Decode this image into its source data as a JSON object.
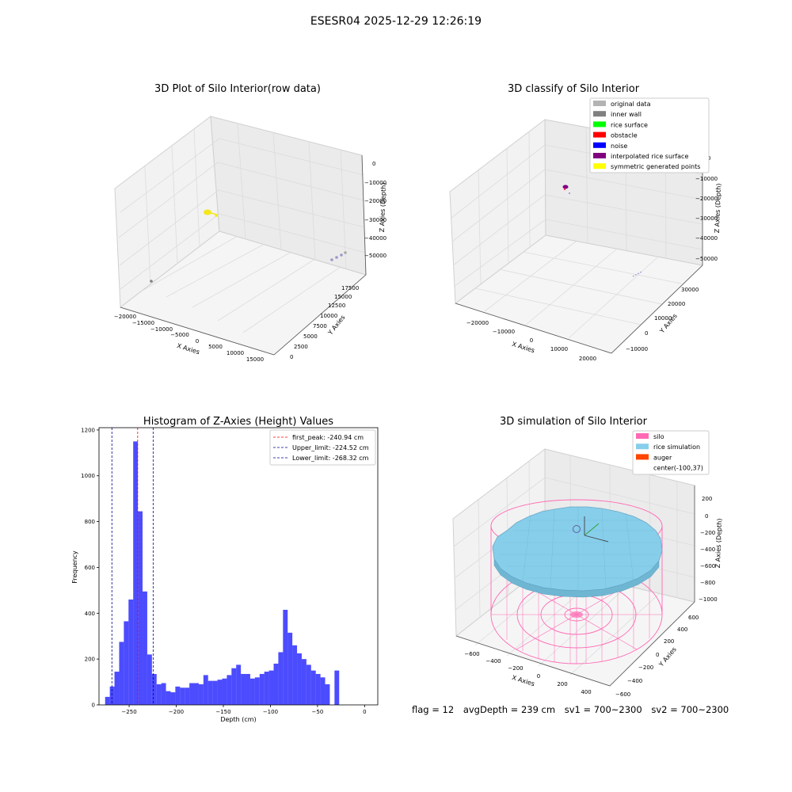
{
  "figure": {
    "suptitle": "ESESR04 2025-12-29 12:26:19",
    "footer": {
      "flag": "flag = 12",
      "avg_depth": "avgDepth = 239 cm",
      "sv1": "sv1 = 700~2300",
      "sv2": "sv2 = 700~2300"
    }
  },
  "colors": {
    "original_data": "#b3b3b3",
    "inner_wall": "#808080",
    "rice_surface": "#00ff00",
    "obstacle": "#ff0000",
    "noise": "#0000ff",
    "interpolated_rice_surface": "#800080",
    "symmetric_generated_points": "#ffff00",
    "silo": "#ff69b4",
    "rice_simulation": "#87ceeb",
    "auger": "#ff4500",
    "hist_bar": "#0000ff",
    "first_peak_line": "#ff0000",
    "limit_line": "#00008b"
  },
  "chart_data": [
    {
      "type": "scatter",
      "title": "3D Plot of Silo Interior(row data)",
      "xlabel": "X Axies",
      "ylabel": "Y Axies",
      "zlabel": "Z Axies (Depth)",
      "x_ticks": [
        "−20000",
        "−15000",
        "−10000",
        "−5000",
        "0",
        "5000",
        "10000",
        "15000"
      ],
      "y_ticks": [
        "0",
        "2500",
        "5000",
        "7500",
        "10000",
        "12500",
        "15000",
        "17500"
      ],
      "z_ticks": [
        "0",
        "−10000",
        "−20000",
        "−30000",
        "−40000",
        "−50000"
      ]
    },
    {
      "type": "scatter",
      "title": "3D classify of Silo Interior",
      "xlabel": "X Axies",
      "ylabel": "Y Axies",
      "zlabel": "Z Axies (Depth)",
      "x_ticks": [
        "−20000",
        "−10000",
        "0",
        "10000",
        "20000"
      ],
      "y_ticks": [
        "−10000",
        "0",
        "10000",
        "20000",
        "30000"
      ],
      "z_ticks": [
        "0",
        "−10000",
        "−20000",
        "−30000",
        "−40000",
        "−50000"
      ],
      "legend": [
        {
          "label": "original data",
          "color": "#b3b3b3"
        },
        {
          "label": "inner wall",
          "color": "#808080"
        },
        {
          "label": "rice surface",
          "color": "#00ff00"
        },
        {
          "label": "obstacle",
          "color": "#ff0000"
        },
        {
          "label": "noise",
          "color": "#0000ff"
        },
        {
          "label": "interpolated rice surface",
          "color": "#800080"
        },
        {
          "label": "symmetric generated points",
          "color": "#ffff00"
        }
      ],
      "legend_position": "top-right"
    },
    {
      "type": "bar",
      "title": "Histogram of Z-Axies (Height) Values",
      "xlabel": "Depth (cm)",
      "ylabel": "Frequency",
      "xlim": [
        -282,
        14
      ],
      "ylim": [
        0,
        1210
      ],
      "x_ticks": [
        -250,
        -200,
        -150,
        -100,
        -50,
        0
      ],
      "y_ticks": [
        0,
        200,
        400,
        600,
        800,
        1000,
        1200
      ],
      "tick_label_map": {
        "-250": "−250",
        "-200": "−200",
        "-150": "−150",
        "-100": "−100",
        "-50": "−50",
        "0": "0"
      },
      "bin_width": 4.97,
      "bin_start": -275.5,
      "values": [
        35,
        80,
        145,
        275,
        365,
        460,
        1150,
        845,
        495,
        220,
        135,
        90,
        95,
        60,
        55,
        80,
        75,
        75,
        95,
        95,
        90,
        130,
        105,
        105,
        110,
        115,
        130,
        160,
        175,
        135,
        135,
        115,
        120,
        135,
        145,
        150,
        180,
        230,
        415,
        315,
        260,
        225,
        200,
        175,
        150,
        135,
        120,
        90,
        0,
        150
      ],
      "lines": [
        {
          "label": "first_peak: -240.94 cm",
          "x": -240.94,
          "color": "#ff0000"
        },
        {
          "label": "Upper_limit: -224.52 cm",
          "x": -224.52,
          "color": "#00008b"
        },
        {
          "label": "Lower_limit: -268.32 cm",
          "x": -268.32,
          "color": "#00008b"
        }
      ],
      "legend_position": "top-right"
    },
    {
      "type": "surface",
      "title": "3D simulation of Silo Interior",
      "xlabel": "X Axies",
      "ylabel": "Y Axies",
      "zlabel": "Z Axies (Depth)",
      "x_ticks": [
        "−600",
        "−400",
        "−200",
        "0",
        "200",
        "400"
      ],
      "y_ticks": [
        "−600",
        "−400",
        "−200",
        "0",
        "200",
        "400",
        "600"
      ],
      "z_ticks": [
        "200",
        "0",
        "−200",
        "−400",
        "−600",
        "−800",
        "−1000"
      ],
      "legend": [
        {
          "label": "silo",
          "color": "#ff69b4"
        },
        {
          "label": "rice simulation",
          "color": "#87ceeb"
        },
        {
          "label": "auger",
          "color": "#ff4500"
        },
        {
          "label": "center(-100,37)",
          "color": ""
        }
      ],
      "legend_position": "top-right"
    }
  ]
}
